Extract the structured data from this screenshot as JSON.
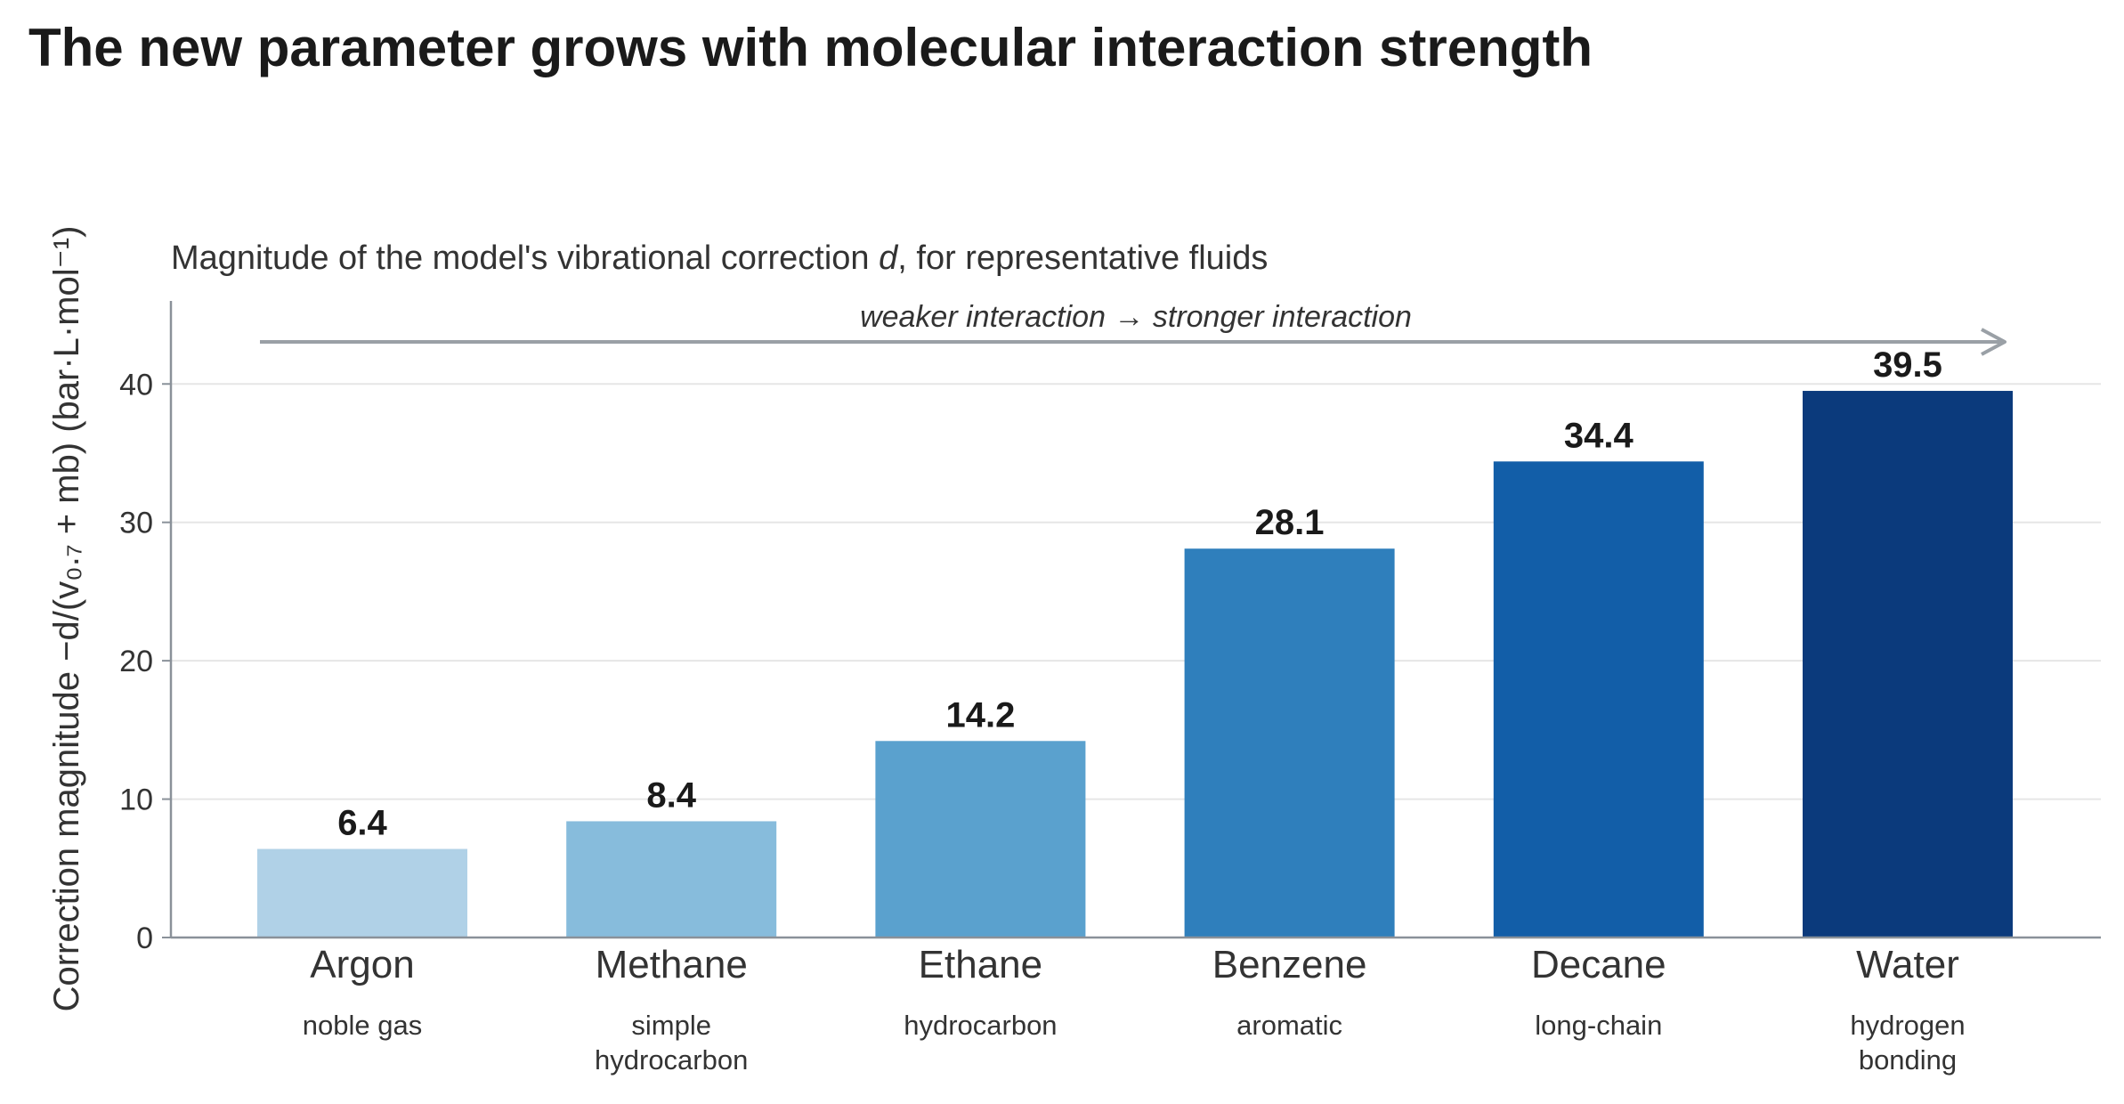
{
  "chart_data": {
    "type": "bar",
    "title": "The new parameter grows with molecular interaction strength",
    "subtitle_prefix": "Magnitude of the model's vibrational correction ",
    "subtitle_var": "d",
    "subtitle_suffix": ", for representative fluids",
    "ylabel": "Correction magnitude  −d/(v₀.₇ + mb)  (bar·L·mol⁻¹)",
    "xlabel": "",
    "ylim": [
      0,
      46
    ],
    "yticks": [
      0,
      10,
      20,
      30,
      40
    ],
    "grid": "horizontal",
    "arrow_annotation": "weaker interaction  →  stronger interaction",
    "categories": [
      "Argon",
      "Methane",
      "Ethane",
      "Benzene",
      "Decane",
      "Water"
    ],
    "descriptions": [
      [
        "noble gas"
      ],
      [
        "simple",
        "hydrocarbon"
      ],
      [
        "hydrocarbon"
      ],
      [
        "aromatic"
      ],
      [
        "long-chain"
      ],
      [
        "hydrogen",
        "bonding"
      ]
    ],
    "values": [
      6.4,
      8.4,
      14.2,
      28.1,
      34.4,
      39.5
    ],
    "value_labels": [
      "6.4",
      "8.4",
      "14.2",
      "28.1",
      "34.4",
      "39.5"
    ],
    "colors": [
      "#b0d1e7",
      "#87bcdc",
      "#5aa1ce",
      "#2f7fbc",
      "#125ea8",
      "#0b3a7c"
    ],
    "axis_color": "#8a9199",
    "grid_color": "#e6e6e6",
    "arrow_color": "#9aa0a6"
  }
}
